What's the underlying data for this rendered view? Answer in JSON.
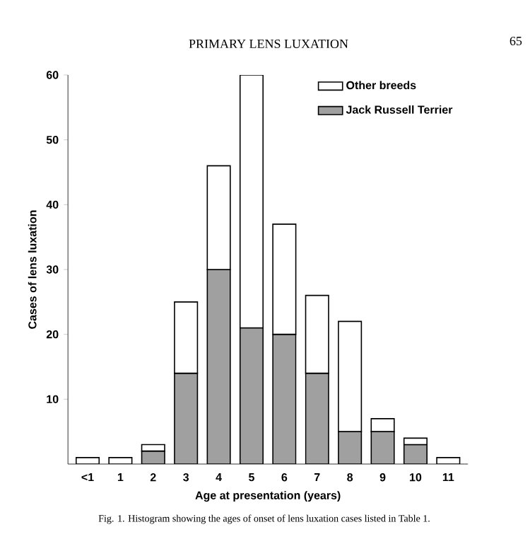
{
  "chart_data": {
    "type": "bar",
    "stacked": true,
    "title": "PRIMARY LENS LUXATION",
    "xlabel": "Age at presentation  (years)",
    "ylabel": "Cases of lens luxation",
    "categories": [
      "<1",
      "1",
      "2",
      "3",
      "4",
      "5",
      "6",
      "7",
      "8",
      "9",
      "10",
      "11"
    ],
    "series": [
      {
        "name": "Jack Russell Terrier",
        "color": "#a0a0a0",
        "values": [
          0,
          0,
          2,
          14,
          30,
          21,
          20,
          14,
          5,
          5,
          3,
          0
        ]
      },
      {
        "name": "Other breeds",
        "color": "#ffffff",
        "values": [
          1,
          1,
          1,
          11,
          16,
          39,
          17,
          12,
          17,
          2,
          1,
          1
        ]
      }
    ],
    "ylim": [
      0,
      60
    ],
    "yticks": [
      10,
      20,
      30,
      40,
      50,
      60
    ],
    "legend": "top right",
    "grid": false,
    "annotations": [
      "65",
      "Fig. 1. Histogram showing the ages of onset of lens luxation cases listed in Table 1."
    ]
  }
}
